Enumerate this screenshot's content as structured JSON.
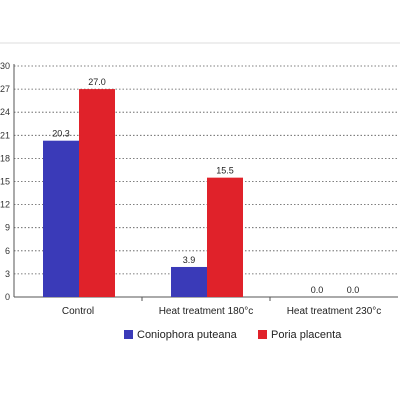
{
  "chart_data": {
    "type": "bar",
    "title": "",
    "xlabel": "",
    "ylabel": "",
    "categories": [
      "Control",
      "Heat treatment 180°c",
      "Heat treatment 230°c"
    ],
    "series": [
      {
        "name": "Coniophora puteana",
        "color": "#3a3ab8",
        "values": [
          20.3,
          3.9,
          0.0
        ],
        "labels": [
          "20.3",
          "3.9",
          "0.0"
        ]
      },
      {
        "name": "Poria placenta",
        "color": "#e0222a",
        "values": [
          27.0,
          15.5,
          0.0
        ],
        "labels": [
          "27.0",
          "15.5",
          "0.0"
        ]
      }
    ],
    "ylim": [
      0,
      30
    ],
    "yticks": [
      0,
      3,
      6,
      9,
      12,
      15,
      18,
      21,
      24,
      27,
      30
    ],
    "grid": true,
    "legend": "bottom"
  }
}
